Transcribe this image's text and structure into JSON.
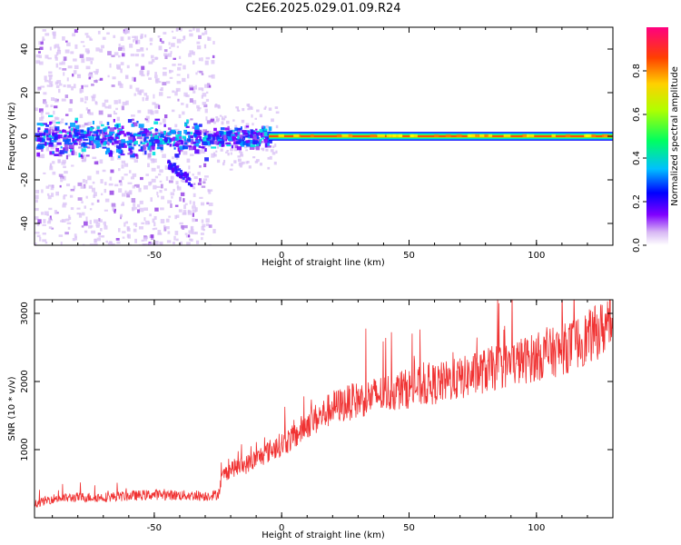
{
  "title": "C2E6.2025.029.01.09.R24",
  "chart_data": [
    {
      "type": "heatmap",
      "xlabel": "Height of straight line (km)",
      "ylabel": "Frequency (Hz)",
      "xlim": [
        -97,
        130
      ],
      "ylim": [
        -50,
        50
      ],
      "xticks": [
        -50,
        0,
        50,
        100
      ],
      "yticks": [
        -40,
        -20,
        0,
        20,
        40
      ],
      "colorbar": {
        "label": "Normalized spectral amplitude",
        "range": [
          0.0,
          1.0
        ],
        "ticks": [
          "0.0",
          "0.2",
          "0.4",
          "0.6",
          "0.8"
        ],
        "colors": [
          "#ffffff",
          "#c8a0f0",
          "#8000ff",
          "#0000ff",
          "#00c0ff",
          "#00ff00",
          "#ffff00",
          "#ff8000",
          "#ff0000",
          "#ff0080"
        ]
      },
      "description_regions": [
        {
          "x_range": [
            -97,
            -27
          ],
          "freq_range": [
            -50,
            50
          ],
          "amplitude": "low scattered"
        },
        {
          "x_range": [
            -97,
            -5
          ],
          "freq_center": 0,
          "amplitude": "medium"
        },
        {
          "x_range": [
            -5,
            130
          ],
          "freq_center": 0,
          "amplitude": "high"
        }
      ]
    },
    {
      "type": "line",
      "xlabel": "Height of straight line (km)",
      "ylabel": "SNR (10 * v/v)",
      "xlim": [
        -97,
        130
      ],
      "ylim": [
        0,
        3200
      ],
      "xticks": [
        -50,
        0,
        50,
        100
      ],
      "yticks": [
        1000,
        2000,
        3000
      ],
      "series": [
        {
          "color": "#f03232",
          "x": [
            -97,
            -90,
            -80,
            -70,
            -60,
            -50,
            -40,
            -30,
            -25,
            -23,
            -20,
            -15,
            -10,
            -5,
            0,
            5,
            10,
            15,
            20,
            30,
            40,
            50,
            60,
            70,
            80,
            90,
            100,
            110,
            120,
            128,
            130
          ],
          "y": [
            200,
            280,
            300,
            300,
            320,
            340,
            330,
            320,
            340,
            620,
            720,
            760,
            860,
            980,
            1080,
            1180,
            1380,
            1480,
            1620,
            1730,
            1820,
            1900,
            1960,
            2040,
            2160,
            2260,
            2360,
            2460,
            2640,
            2820,
            2880
          ]
        }
      ]
    }
  ]
}
